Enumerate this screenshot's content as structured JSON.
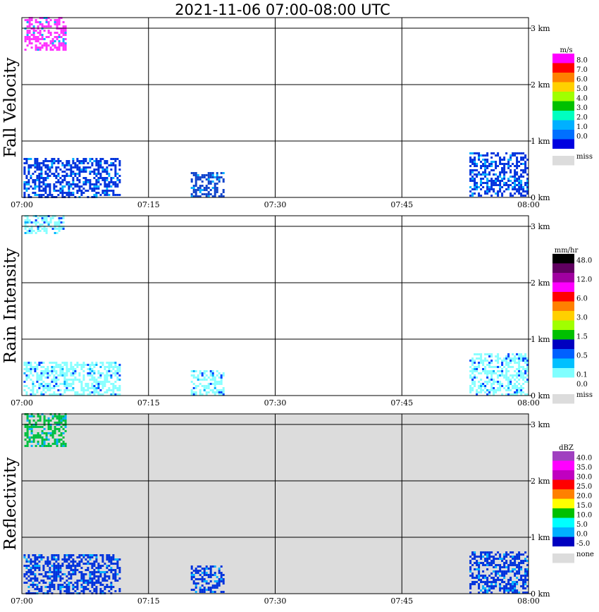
{
  "title": "2021-11-06   07:00-08:00 UTC",
  "colors": {
    "panel_bg": "#ffffff",
    "reflectivity_bg": "#dcdcdc",
    "grid": "#000000",
    "miss": "#dcdcdc"
  },
  "chart_data": [
    {
      "type": "heatmap",
      "ylabel": "Fall Velocity",
      "x_ticks": [
        "07:00",
        "07:15",
        "07:30",
        "07:45",
        "08:00"
      ],
      "y_ticks": [
        "0 km",
        "1 km",
        "2 km",
        "3 km"
      ],
      "xlim": [
        "07:00",
        "08:00"
      ],
      "ylim_km": [
        0,
        3.2
      ],
      "grid": true,
      "legend": {
        "unit": "m/s",
        "levels": [
          {
            "label": "8.0",
            "color": "#ff00ff"
          },
          {
            "label": "7.0",
            "color": "#ff0000"
          },
          {
            "label": "6.0",
            "color": "#ff8000"
          },
          {
            "label": "5.0",
            "color": "#ffd000"
          },
          {
            "label": "4.0",
            "color": "#a0ff00"
          },
          {
            "label": "3.0",
            "color": "#00c000"
          },
          {
            "label": "2.0",
            "color": "#00ffc0"
          },
          {
            "label": "1.0",
            "color": "#00b0ff"
          },
          {
            "label": "0.0",
            "color": "#0070ff"
          },
          {
            "label": "",
            "color": "#0000e0"
          }
        ],
        "miss_label": "miss"
      },
      "echoes": [
        {
          "t0": 0.3,
          "t1": 5.4,
          "z0": 3.2,
          "z1": 2.6,
          "color": "#ff33ff"
        },
        {
          "t0": 0.2,
          "t1": 11.6,
          "z0": 0.0,
          "z1": 0.7,
          "color": "#0033dd"
        },
        {
          "t0": 20.0,
          "t1": 24.0,
          "z0": 0.0,
          "z1": 0.45,
          "color": "#1144cc"
        },
        {
          "t0": 53.0,
          "t1": 60.0,
          "z0": 0.0,
          "z1": 0.8,
          "color": "#0033dd"
        }
      ]
    },
    {
      "type": "heatmap",
      "ylabel": "Rain Intensity",
      "x_ticks": [
        "07:00",
        "07:15",
        "07:30",
        "07:45",
        "08:00"
      ],
      "y_ticks": [
        "0 km",
        "1 km",
        "2 km",
        "3 km"
      ],
      "xlim": [
        "07:00",
        "08:00"
      ],
      "ylim_km": [
        0,
        3.2
      ],
      "grid": true,
      "legend": {
        "unit": "mm/hr",
        "levels": [
          {
            "label": "48.0",
            "color": "#000000"
          },
          {
            "label": "",
            "color": "#600060"
          },
          {
            "label": "12.0",
            "color": "#a000a0"
          },
          {
            "label": "",
            "color": "#ff00ff"
          },
          {
            "label": "6.0",
            "color": "#ff0000"
          },
          {
            "label": "",
            "color": "#ff8000"
          },
          {
            "label": "3.0",
            "color": "#ffd000"
          },
          {
            "label": "",
            "color": "#a0ff00"
          },
          {
            "label": "1.5",
            "color": "#00c000"
          },
          {
            "label": "",
            "color": "#0000c0"
          },
          {
            "label": "0.5",
            "color": "#0060ff"
          },
          {
            "label": "",
            "color": "#00c0ff"
          },
          {
            "label": "0.1",
            "color": "#80ffff"
          },
          {
            "label": "0.0",
            "color": "#ffffff"
          }
        ],
        "miss_label": "miss"
      },
      "echoes": [
        {
          "t0": 0.3,
          "t1": 5.0,
          "z0": 3.2,
          "z1": 2.85,
          "color": "#88ffff"
        },
        {
          "t0": 0.2,
          "t1": 11.6,
          "z0": 0.0,
          "z1": 0.6,
          "color": "#88ffff"
        },
        {
          "t0": 20.0,
          "t1": 24.0,
          "z0": 0.0,
          "z1": 0.45,
          "color": "#88ffff"
        },
        {
          "t0": 53.0,
          "t1": 60.0,
          "z0": 0.0,
          "z1": 0.75,
          "color": "#88ffff"
        }
      ]
    },
    {
      "type": "heatmap",
      "ylabel": "Reflectivity",
      "x_ticks": [
        "07:00",
        "07:15",
        "07:30",
        "07:45",
        "08:00"
      ],
      "y_ticks": [
        "0 km",
        "1 km",
        "2 km",
        "3 km"
      ],
      "xlim": [
        "07:00",
        "08:00"
      ],
      "ylim_km": [
        0,
        3.2
      ],
      "grid": true,
      "legend": {
        "unit": "dBZ",
        "levels": [
          {
            "label": "40.0",
            "color": "#a040c0"
          },
          {
            "label": "35.0",
            "color": "#ff00ff"
          },
          {
            "label": "30.0",
            "color": "#c000c0"
          },
          {
            "label": "25.0",
            "color": "#ff0000"
          },
          {
            "label": "20.0",
            "color": "#ff8000"
          },
          {
            "label": "15.0",
            "color": "#ffff00"
          },
          {
            "label": "10.0",
            "color": "#00c000"
          },
          {
            "label": "5.0",
            "color": "#00ffff"
          },
          {
            "label": "0.0",
            "color": "#00b0ff"
          },
          {
            "label": "-5.0",
            "color": "#0000c0"
          }
        ],
        "miss_label": "none"
      },
      "echoes": [
        {
          "t0": 0.3,
          "t1": 5.4,
          "z0": 3.2,
          "z1": 2.6,
          "color": "#00c040"
        },
        {
          "t0": 0.2,
          "t1": 11.6,
          "z0": 0.0,
          "z1": 0.7,
          "color": "#0033dd"
        },
        {
          "t0": 20.0,
          "t1": 24.0,
          "z0": 0.0,
          "z1": 0.5,
          "color": "#0033dd"
        },
        {
          "t0": 53.0,
          "t1": 60.0,
          "z0": 0.0,
          "z1": 0.75,
          "color": "#0033dd"
        }
      ]
    }
  ]
}
